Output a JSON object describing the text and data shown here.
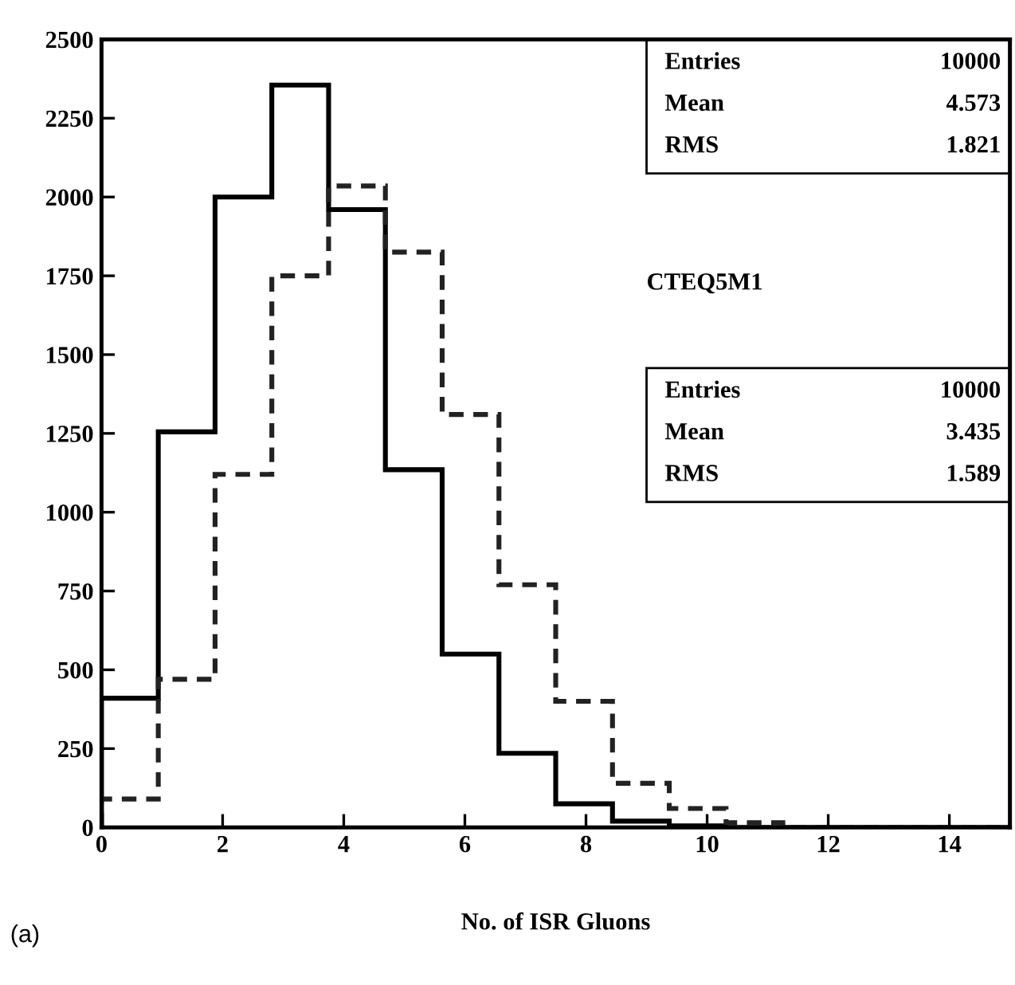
{
  "chart_data": {
    "type": "histogram",
    "xlabel": "No. of ISR Gluons",
    "bins": [
      0,
      0.9375,
      1.875,
      2.8125,
      3.75,
      4.6875,
      5.625,
      6.5625,
      7.5,
      8.4375,
      9.375,
      10.3125,
      11.25,
      12.1875,
      13.125,
      14.0625,
      15
    ],
    "series": [
      {
        "color": "#000000",
        "line_style": "solid",
        "values": [
          410,
          1255,
          2000,
          2355,
          1960,
          1135,
          550,
          235,
          75,
          20,
          5,
          0,
          0,
          0,
          0,
          0
        ]
      },
      {
        "color": "#222222",
        "line_style": "dashed",
        "values": [
          90,
          470,
          1120,
          1750,
          2035,
          1825,
          1310,
          770,
          400,
          140,
          60,
          15,
          0,
          0,
          0,
          0
        ]
      }
    ],
    "xlim": [
      0,
      15
    ],
    "ylim": [
      0,
      2500
    ],
    "xticks": [
      0,
      2,
      4,
      6,
      8,
      10,
      12,
      14
    ],
    "yticks": [
      0,
      250,
      500,
      750,
      1000,
      1250,
      1500,
      1750,
      2000,
      2250,
      2500
    ],
    "grid": false,
    "legend": false,
    "annotations": [
      "Entries",
      "10000",
      "Mean",
      "4.573",
      "RMS",
      "1.821",
      "CTEQ5M1",
      "Entries",
      "10000",
      "Mean",
      "3.435",
      "RMS",
      "1.589",
      "(a)"
    ]
  }
}
